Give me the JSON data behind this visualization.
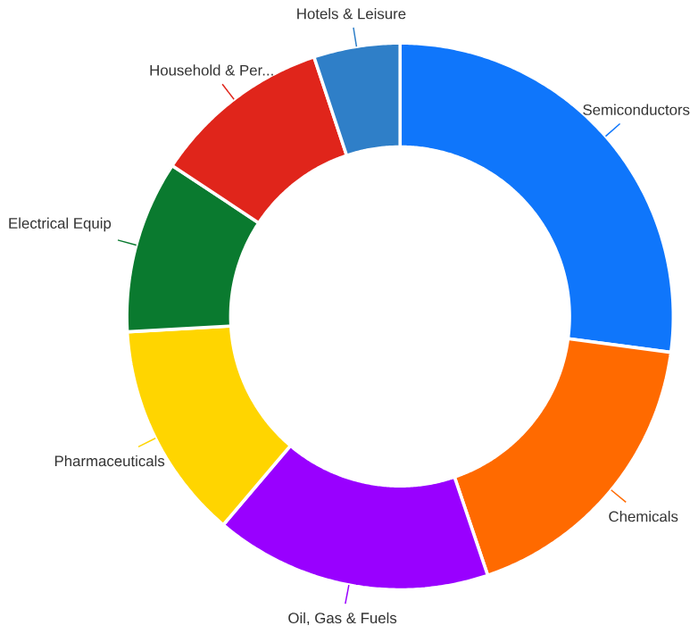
{
  "chart_data": {
    "type": "donut",
    "categories": [
      "Semiconductors",
      "Chemicals",
      "Oil, Gas & Fuels",
      "Pharmaceuticals",
      "Electrical Equip",
      "Household & Per...",
      "Hotels & Leisure"
    ],
    "values": [
      27.1,
      17.7,
      16.4,
      12.9,
      10.2,
      10.6,
      5.1
    ],
    "colors": [
      "#0f76fb",
      "#ff6a00",
      "#9900ff",
      "#ffd500",
      "#0a7a2f",
      "#e0251b",
      "#2f7fc8"
    ]
  }
}
